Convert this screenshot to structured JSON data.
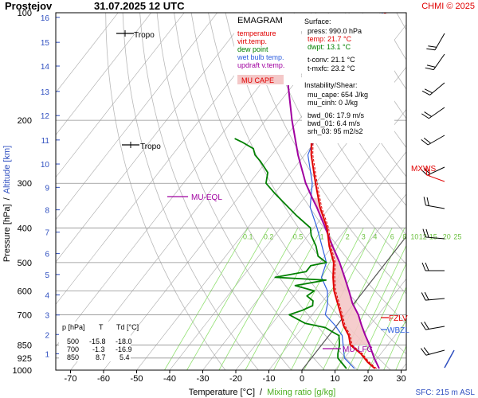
{
  "header": {
    "station": "Prostejov",
    "datetime": "31.07.2025 12 UTC",
    "credit": "CHMI © 2025"
  },
  "legend": {
    "title": "EMAGRAM",
    "items": [
      {
        "label": "temperature",
        "color": "#e00000"
      },
      {
        "label": "virt.temp.",
        "color": "#e00000"
      },
      {
        "label": "dew point",
        "color": "#008000"
      },
      {
        "label": "wet bulb temp.",
        "color": "#3060e0"
      },
      {
        "label": "updraft v.temp.",
        "color": "#a000a0"
      }
    ],
    "cape_box": "MU CAPE"
  },
  "info": {
    "surface_title": "Surface:",
    "press": "press: 990.0 hPa",
    "temp": "temp: 21.7 °C",
    "dwpt": "dwpt: 13.1 °C",
    "tconv": "t-conv: 21.1 °C",
    "tmxfc": "t-mxfc: 23.2 °C",
    "inst_title": "Instability/Shear:",
    "mucape": "mu_cape: 654 J/kg",
    "mucinh": "mu_cinh: 0 J/kg",
    "bwd06": "bwd_06: 17.9 m/s",
    "bwd01": "bwd_01: 6.4 m/s",
    "srh03": "srh_03: 95 m2/s2"
  },
  "table": {
    "headers": [
      "p [hPa]",
      "T",
      "Td [°C]"
    ],
    "rows": [
      [
        "500",
        "-15.8",
        "-18.0"
      ],
      [
        "700",
        "-1.3",
        "-16.9"
      ],
      [
        "850",
        "8.7",
        "5.4"
      ]
    ]
  },
  "labels": {
    "tropo1": "Tropo",
    "tropo2": "Tropo",
    "mueql": "MU-EQL",
    "mulfc": "MU-LFC",
    "fzlv": "FZLV",
    "wbzl": "WBZL",
    "mxws": "MXWS",
    "sfc": "SFC: 215 m ASL"
  },
  "colors": {
    "temp": "#e00000",
    "dew": "#008000",
    "wetbulb": "#3060e0",
    "updraft": "#a000a0",
    "cape": "#f4c8c8",
    "mixing": "#90e070",
    "dryad": "#b8b8b8",
    "isobar": "#909090",
    "altitude": "#3050c0",
    "credit": "#e00000",
    "wind": "#000000"
  },
  "chart_data": {
    "type": "line",
    "title": "",
    "xlabel": "Temperature [°C]",
    "xlabel_sep": "/",
    "xlabel2": "Mixing ratio [g/kg]",
    "ylabel": "Pressure [hPa]",
    "ylabel_sep": "/",
    "ylabel2": "Altitude [km]",
    "xlim": [
      -80,
      35
    ],
    "ylim": [
      1000,
      100
    ],
    "yscale": "log",
    "skewed": true,
    "pressure_ticks": [
      100,
      200,
      300,
      400,
      500,
      600,
      700,
      850,
      925,
      1000
    ],
    "temperature_ticks": [
      -70,
      -60,
      -50,
      -40,
      -30,
      -20,
      -10,
      0,
      10,
      20,
      30
    ],
    "altitude_ticks_km": [
      {
        "label": "1",
        "p": 900
      },
      {
        "label": "2",
        "p": 795
      },
      {
        "label": "3",
        "p": 701
      },
      {
        "label": "4",
        "p": 616
      },
      {
        "label": "5",
        "p": 540
      },
      {
        "label": "6",
        "p": 472
      },
      {
        "label": "7",
        "p": 411
      },
      {
        "label": "8",
        "p": 356
      },
      {
        "label": "9",
        "p": 308
      },
      {
        "label": "10",
        "p": 265
      },
      {
        "label": "11",
        "p": 227
      },
      {
        "label": "12",
        "p": 194
      },
      {
        "label": "13",
        "p": 166
      },
      {
        "label": "14",
        "p": 141
      },
      {
        "label": "15",
        "p": 121
      },
      {
        "label": "16",
        "p": 103
      }
    ],
    "mixing_ratio_labels": [
      "0.1",
      "0.2",
      "0.5",
      "1",
      "2",
      "3",
      "4",
      "6",
      "8",
      "10",
      "12",
      "15",
      "20",
      "25"
    ],
    "series": [
      {
        "key": "temp",
        "points": [
          [
            990,
            21.7
          ],
          [
            950,
            18
          ],
          [
            925,
            16
          ],
          [
            900,
            14
          ],
          [
            850,
            8.7
          ],
          [
            800,
            6
          ],
          [
            750,
            2
          ],
          [
            700,
            -1.3
          ],
          [
            650,
            -5
          ],
          [
            600,
            -9
          ],
          [
            550,
            -12.5
          ],
          [
            500,
            -15.8
          ],
          [
            450,
            -21
          ],
          [
            400,
            -26
          ],
          [
            350,
            -33
          ],
          [
            300,
            -40
          ],
          [
            250,
            -48
          ],
          [
            230,
            -51
          ],
          [
            210,
            -52
          ],
          [
            190,
            -53
          ],
          [
            170,
            -55
          ],
          [
            150,
            -55
          ],
          [
            130,
            -56
          ],
          [
            115,
            -59
          ],
          [
            108,
            -62
          ],
          [
            104,
            -60
          ],
          [
            100,
            -59
          ]
        ]
      },
      {
        "key": "dew",
        "points": [
          [
            990,
            13.1
          ],
          [
            950,
            10
          ],
          [
            925,
            8
          ],
          [
            900,
            7
          ],
          [
            850,
            5.4
          ],
          [
            820,
            4
          ],
          [
            800,
            3
          ],
          [
            780,
            0
          ],
          [
            760,
            -3
          ],
          [
            740,
            -10
          ],
          [
            700,
            -16.9
          ],
          [
            680,
            -14
          ],
          [
            660,
            -12
          ],
          [
            640,
            -13
          ],
          [
            620,
            -16
          ],
          [
            600,
            -15
          ],
          [
            580,
            -22
          ],
          [
            560,
            -14
          ],
          [
            550,
            -30
          ],
          [
            530,
            -22
          ],
          [
            510,
            -22
          ],
          [
            500,
            -18
          ],
          [
            480,
            -22
          ],
          [
            450,
            -25
          ],
          [
            420,
            -29
          ],
          [
            400,
            -31
          ],
          [
            370,
            -38
          ],
          [
            340,
            -45
          ],
          [
            320,
            -50
          ],
          [
            300,
            -55
          ],
          [
            280,
            -57
          ],
          [
            260,
            -62
          ],
          [
            250,
            -65
          ],
          [
            240,
            -67
          ],
          [
            230,
            -72
          ],
          [
            225,
            -75
          ]
        ]
      },
      {
        "key": "wetbulb",
        "points": [
          [
            990,
            15.5
          ],
          [
            925,
            10
          ],
          [
            850,
            6.5
          ],
          [
            800,
            4
          ],
          [
            750,
            -0.5
          ],
          [
            700,
            -6
          ],
          [
            650,
            -8
          ],
          [
            600,
            -11
          ],
          [
            550,
            -16
          ],
          [
            500,
            -18
          ],
          [
            400,
            -29
          ],
          [
            350,
            -36
          ],
          [
            300,
            -41
          ],
          [
            250,
            -49
          ],
          [
            200,
            -53
          ],
          [
            150,
            -56
          ],
          [
            120,
            -58
          ],
          [
            100,
            -60
          ]
        ]
      },
      {
        "key": "updraft",
        "points": [
          [
            990,
            23
          ],
          [
            925,
            19
          ],
          [
            850,
            14.5
          ],
          [
            800,
            11
          ],
          [
            750,
            7.5
          ],
          [
            700,
            4
          ],
          [
            650,
            -0.5
          ],
          [
            600,
            -4.5
          ],
          [
            550,
            -9
          ],
          [
            500,
            -14
          ],
          [
            450,
            -20
          ],
          [
            400,
            -26.5
          ],
          [
            350,
            -34
          ],
          [
            330,
            -37.5
          ],
          [
            300,
            -43
          ],
          [
            250,
            -52
          ],
          [
            200,
            -62
          ],
          [
            150,
            -74
          ],
          [
            130,
            -80
          ]
        ]
      }
    ]
  }
}
